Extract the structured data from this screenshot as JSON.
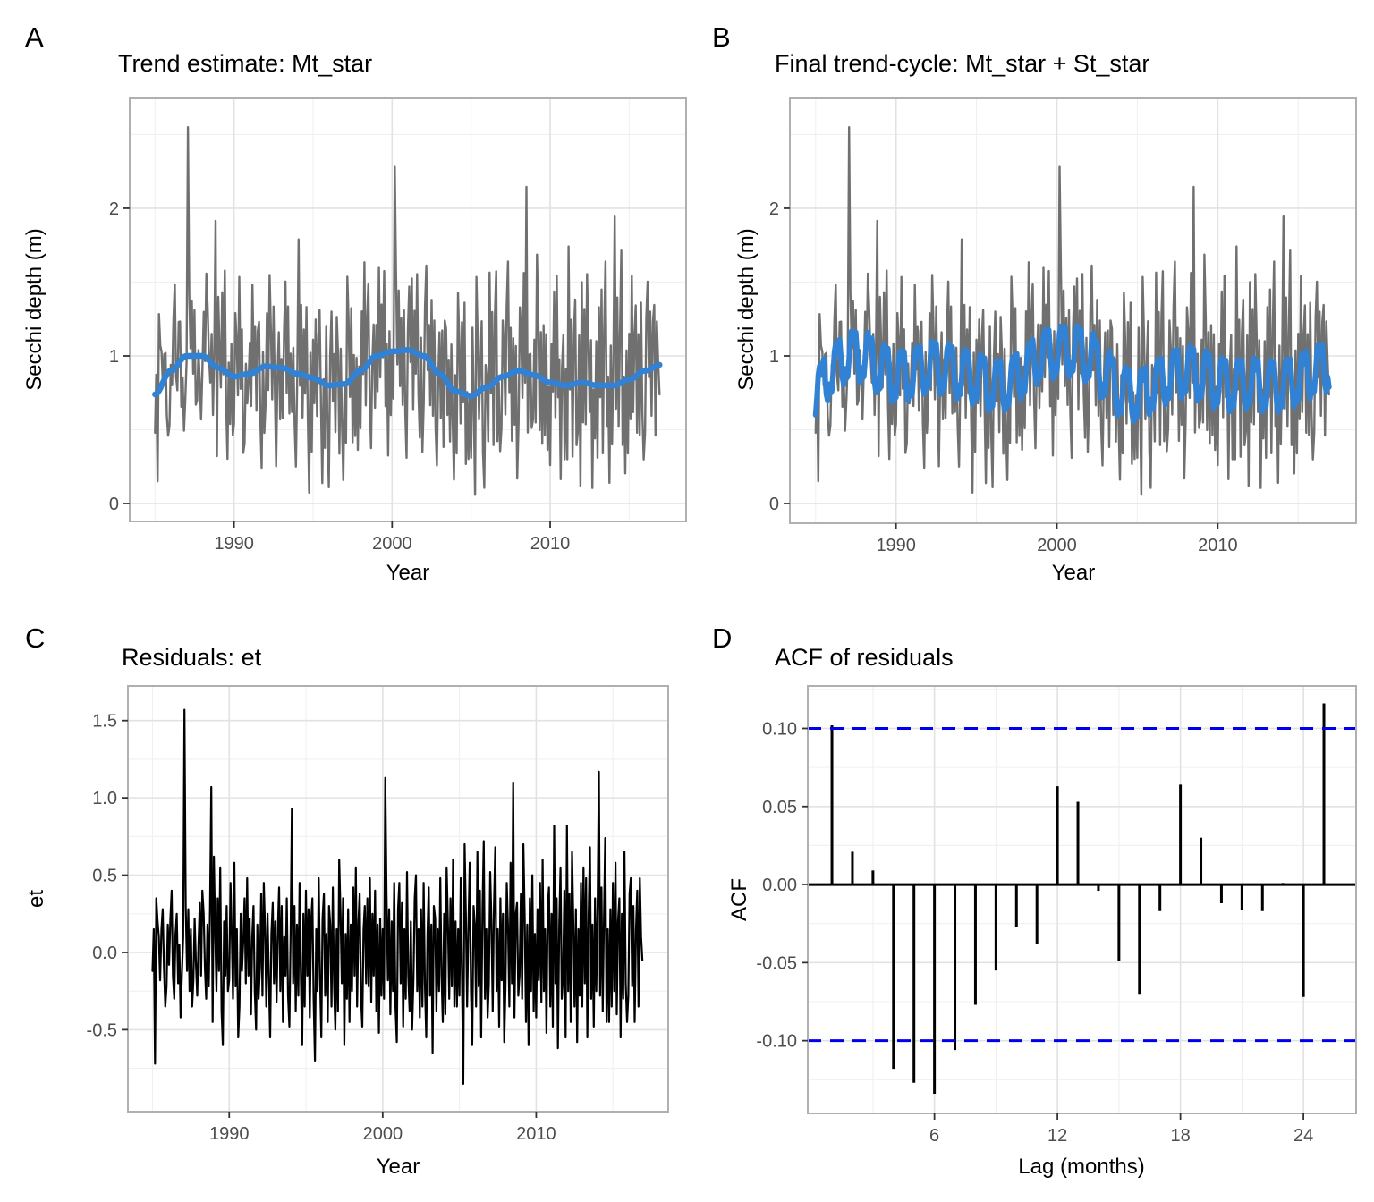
{
  "figure": {
    "background": "#ffffff",
    "tags": [
      "A",
      "B",
      "C",
      "D"
    ]
  },
  "colors": {
    "trend_blue": "#3182D4",
    "observed_gray": "#707070",
    "residual_black": "#000000",
    "ci_dashed_blue": "#0000EE",
    "grid_major": "#E2E2E2",
    "grid_minor": "#F0F0F0",
    "panel_border": "#B0B0B0",
    "tick_mark": "#333333",
    "tick_text": "#4D4D4D"
  },
  "panels": [
    {
      "tag": "A",
      "title": "Trend estimate: Mt_star",
      "xlabel": "Year",
      "ylabel": "Secchi depth (m)",
      "x_ticks": [
        1990,
        2000,
        2010
      ],
      "x_tick_labels": [
        "1990",
        "2000",
        "2010"
      ],
      "x_minor": [
        1985,
        1995,
        2005,
        2015
      ],
      "y_ticks": [
        0,
        1,
        2
      ],
      "y_tick_labels": [
        "0",
        "1",
        "2"
      ],
      "y_minor": [
        0.5,
        1.5,
        2.5
      ]
    },
    {
      "tag": "B",
      "title": "Final trend-cycle: Mt_star + St_star",
      "xlabel": "Year",
      "ylabel": "Secchi depth (m)",
      "x_ticks": [
        1990,
        2000,
        2010
      ],
      "x_tick_labels": [
        "1990",
        "2000",
        "2010"
      ],
      "x_minor": [
        1985,
        1995,
        2005,
        2015
      ],
      "y_ticks": [
        0,
        1,
        2
      ],
      "y_tick_labels": [
        "0",
        "1",
        "2"
      ],
      "y_minor": [
        0.5,
        1.5,
        2.5
      ]
    },
    {
      "tag": "C",
      "title": "Residuals: et",
      "xlabel": "Year",
      "ylabel": "et",
      "x_ticks": [
        1990,
        2000,
        2010
      ],
      "x_tick_labels": [
        "1990",
        "2000",
        "2010"
      ],
      "x_minor": [
        1985,
        1995,
        2005,
        2015
      ],
      "y_ticks": [
        -0.5,
        0.0,
        0.5,
        1.0,
        1.5
      ],
      "y_tick_labels": [
        "-0.5",
        "0.0",
        "0.5",
        "1.0",
        "1.5"
      ],
      "y_minor": [
        -0.75,
        -0.25,
        0.25,
        0.75,
        1.25
      ]
    },
    {
      "tag": "D",
      "title": "ACF of residuals",
      "xlabel": "Lag (months)",
      "ylabel": "ACF",
      "x_ticks": [
        6,
        12,
        18,
        24
      ],
      "x_tick_labels": [
        "6",
        "12",
        "18",
        "24"
      ],
      "x_minor": [
        3,
        9,
        15,
        21
      ],
      "y_ticks": [
        -0.1,
        -0.05,
        0.0,
        0.05,
        0.1
      ],
      "y_tick_labels": [
        "-0.10",
        "-0.05",
        "0.00",
        "0.05",
        "0.10"
      ],
      "y_minor": [
        -0.125,
        -0.075,
        -0.025,
        0.025,
        0.075,
        0.125
      ]
    }
  ],
  "chart_data": {
    "type": "multi-panel time-series decomposition",
    "time": {
      "start_year": 1985,
      "end_year": 2017,
      "step": "monthly",
      "n_points": 384
    },
    "panel_A": {
      "type": "line",
      "title": "Trend estimate: Mt_star",
      "xlabel": "Year",
      "ylabel": "Secchi depth (m)",
      "xlim": [
        1983.4,
        2018.6
      ],
      "ylim": [
        -0.12,
        2.75
      ],
      "series": [
        {
          "name": "observed Secchi depth",
          "color_key": "observed_gray",
          "rule": "trend + seasonal + residual (monthly)"
        },
        {
          "name": "Mt_star trend",
          "color_key": "trend_blue",
          "rule": "trend interpolated from trend_knots"
        }
      ]
    },
    "panel_B": {
      "type": "line",
      "title": "Final trend-cycle: Mt_star + St_star",
      "xlabel": "Year",
      "ylabel": "Secchi depth (m)",
      "xlim": [
        1983.4,
        2018.6
      ],
      "ylim": [
        -0.13,
        2.75
      ],
      "series": [
        {
          "name": "observed Secchi depth",
          "color_key": "observed_gray",
          "rule": "trend + seasonal + residual (monthly)"
        },
        {
          "name": "Mt_star + St_star",
          "color_key": "trend_blue",
          "rule": "trend + seasonal (monthly)"
        }
      ]
    },
    "panel_C": {
      "type": "line",
      "title": "Residuals: et",
      "xlabel": "Year",
      "ylabel": "et",
      "xlim": [
        1983.4,
        2018.6
      ],
      "ylim": [
        -1.03,
        1.72
      ],
      "series": [
        {
          "name": "et residuals",
          "color_key": "residual_black",
          "rule": "residuals (monthly)"
        }
      ]
    },
    "panel_D": {
      "type": "bar",
      "title": "ACF of residuals",
      "xlabel": "Lag (months)",
      "ylabel": "ACF",
      "xlim": [
        -0.2,
        26.6
      ],
      "ylim": [
        -0.147,
        0.127
      ],
      "ci_bounds": [
        0.1,
        -0.1
      ],
      "lags": [
        1,
        2,
        3,
        4,
        5,
        6,
        7,
        8,
        9,
        10,
        11,
        12,
        13,
        14,
        15,
        16,
        17,
        18,
        19,
        20,
        21,
        22,
        23,
        24,
        25
      ],
      "acf_values": [
        0.102,
        0.021,
        0.009,
        -0.118,
        -0.127,
        -0.134,
        -0.106,
        -0.077,
        -0.055,
        -0.027,
        -0.038,
        0.063,
        0.053,
        -0.004,
        -0.049,
        -0.07,
        -0.017,
        0.064,
        0.03,
        -0.012,
        -0.016,
        -0.017,
        0.001,
        -0.072,
        0.116
      ]
    },
    "components": {
      "trend_knot_years": [
        1985,
        1986,
        1987,
        1988,
        1989,
        1990,
        1991,
        1992,
        1993,
        1994,
        1995,
        1996,
        1997,
        1998,
        1999,
        2000,
        2001,
        2002,
        2003,
        2004,
        2005,
        2006,
        2007,
        2008,
        2009,
        2010,
        2011,
        2012,
        2013,
        2014,
        2015,
        2016,
        2017
      ],
      "trend_knots": [
        0.74,
        0.9,
        1.0,
        1.0,
        0.92,
        0.86,
        0.88,
        0.93,
        0.92,
        0.88,
        0.85,
        0.8,
        0.81,
        0.9,
        1.0,
        1.03,
        1.04,
        1.0,
        0.88,
        0.76,
        0.73,
        0.79,
        0.86,
        0.9,
        0.87,
        0.82,
        0.8,
        0.82,
        0.8,
        0.8,
        0.84,
        0.9,
        0.94
      ],
      "seasonal_monthly": [
        -0.14,
        -0.02,
        0.12,
        0.17,
        0.09,
        0.13,
        0.16,
        0.02,
        -0.12,
        -0.18,
        -0.08,
        -0.15
      ],
      "residuals_by_year": [
        [
          -0.12,
          0.15,
          -0.72,
          0.35,
          0.2,
          0.1,
          -0.18,
          0.15,
          0.28,
          -0.1,
          -0.35,
          -0.22
        ],
        [
          0.18,
          -0.08,
          0.22,
          0.4,
          -0.15,
          -0.3,
          0.12,
          0.25,
          -0.2,
          0.05,
          -0.42,
          -0.15
        ],
        [
          0.1,
          1.57,
          0.3,
          -0.12,
          0.28,
          -0.25,
          0.15,
          -0.35,
          -0.18,
          0.22,
          -0.08,
          -0.28
        ],
        [
          0.05,
          0.32,
          -0.15,
          0.4,
          0.25,
          -0.1,
          -0.3,
          0.18,
          -0.22,
          0.28,
          1.07,
          -0.45
        ],
        [
          0.62,
          0.15,
          -0.25,
          0.35,
          -0.12,
          0.55,
          -0.38,
          -0.6,
          0.2,
          -0.15,
          0.3,
          -0.25
        ],
        [
          -0.18,
          0.45,
          0.12,
          -0.3,
          0.58,
          -0.22,
          0.15,
          -0.55,
          -0.35,
          0.25,
          -0.12,
          0.08
        ],
        [
          0.35,
          -0.2,
          0.48,
          -0.15,
          0.22,
          -0.4,
          0.1,
          0.3,
          -0.25,
          -0.5,
          0.18,
          -0.3
        ],
        [
          -0.1,
          0.38,
          -0.28,
          0.45,
          0.15,
          -0.35,
          0.25,
          -0.18,
          -0.55,
          0.12,
          0.32,
          -0.2
        ],
        [
          0.2,
          -0.32,
          0.15,
          0.42,
          -0.25,
          0.3,
          -0.45,
          0.1,
          -0.15,
          0.35,
          -0.28,
          -0.48
        ],
        [
          0.12,
          0.93,
          -0.2,
          0.3,
          -0.38,
          0.18,
          -0.28,
          0.45,
          -0.15,
          -0.6,
          0.25,
          -0.35
        ],
        [
          0.4,
          -0.15,
          0.28,
          -0.42,
          0.2,
          0.35,
          -0.3,
          -0.7,
          0.15,
          -0.25,
          0.48,
          -0.18
        ],
        [
          -0.55,
          0.22,
          0.38,
          -0.28,
          0.12,
          -0.45,
          0.3,
          0.18,
          -0.35,
          0.42,
          -0.22,
          -0.5
        ],
        [
          0.15,
          -0.38,
          0.6,
          0.25,
          -0.2,
          0.35,
          -0.6,
          0.12,
          -0.3,
          0.28,
          -0.45,
          0.18
        ],
        [
          -0.25,
          0.42,
          -0.15,
          0.55,
          -0.35,
          0.2,
          0.38,
          -0.28,
          -0.48,
          0.15,
          0.3,
          -0.2
        ],
        [
          0.35,
          -0.22,
          0.48,
          -0.32,
          0.25,
          -0.15,
          0.4,
          -0.38,
          0.18,
          -0.52,
          0.22,
          -0.28
        ],
        [
          0.15,
          -0.3,
          1.13,
          0.38,
          -0.18,
          0.28,
          -0.4,
          0.2,
          -0.25,
          0.45,
          -0.35,
          -0.58
        ],
        [
          0.28,
          0.45,
          -0.2,
          0.32,
          -0.48,
          0.15,
          -0.3,
          0.52,
          -0.15,
          -0.38,
          0.2,
          -0.5
        ],
        [
          -0.18,
          0.35,
          0.5,
          -0.25,
          0.15,
          -0.42,
          0.28,
          -0.35,
          0.45,
          -0.2,
          -0.55,
          0.12
        ],
        [
          0.42,
          -0.28,
          0.18,
          -0.65,
          0.3,
          0.22,
          -0.38,
          0.15,
          -0.25,
          0.48,
          -0.15,
          -0.45
        ],
        [
          0.25,
          -0.4,
          0.55,
          0.18,
          -0.3,
          0.35,
          -0.22,
          0.6,
          -0.35,
          0.2,
          -0.35,
          0.15
        ],
        [
          -0.28,
          0.48,
          -0.18,
          -0.85,
          0.7,
          0.25,
          -0.35,
          0.15,
          0.58,
          -0.25,
          -0.6,
          0.3
        ],
        [
          0.18,
          -0.35,
          0.65,
          -0.22,
          0.4,
          -0.55,
          0.28,
          0.72,
          -0.3,
          0.15,
          -0.42,
          -0.2
        ],
        [
          0.52,
          0.2,
          -0.38,
          0.3,
          0.68,
          -0.25,
          0.15,
          -0.48,
          0.35,
          -0.18,
          0.25,
          -0.58
        ],
        [
          -0.22,
          0.45,
          0.15,
          -0.35,
          0.58,
          -0.2,
          1.1,
          -0.42,
          0.25,
          0.32,
          -0.28,
          -0.15
        ],
        [
          0.38,
          -0.3,
          0.7,
          0.22,
          -0.45,
          0.18,
          -0.6,
          0.35,
          -0.25,
          0.5,
          -0.38,
          0.12
        ],
        [
          -0.42,
          0.28,
          -0.18,
          0.45,
          -0.32,
          0.6,
          -0.25,
          0.15,
          -0.52,
          0.3,
          0.42,
          -0.35
        ],
        [
          0.25,
          -0.48,
          0.82,
          -0.2,
          0.35,
          -0.62,
          0.18,
          0.55,
          -0.3,
          -0.15,
          0.4,
          -0.55
        ],
        [
          0.82,
          -0.25,
          0.38,
          -0.45,
          0.65,
          0.2,
          -0.35,
          0.28,
          -0.58,
          0.15,
          -0.28,
          0.45
        ],
        [
          -0.35,
          0.55,
          -0.2,
          0.48,
          -0.55,
          0.25,
          0.68,
          -0.3,
          0.18,
          -0.48,
          0.35,
          -0.25
        ],
        [
          0.3,
          1.17,
          -0.28,
          0.42,
          -0.38,
          0.22,
          0.74,
          -0.45,
          0.15,
          -0.45,
          0.28,
          -0.35
        ],
        [
          0.45,
          -0.25,
          0.58,
          -0.4,
          0.2,
          0.35,
          -0.55,
          0.25,
          -0.3,
          0.65,
          -0.2,
          -0.45
        ],
        [
          -0.28,
          0.38,
          0.48,
          -0.22,
          0.3,
          -0.45,
          0.15,
          0.4,
          -0.35,
          0.48,
          0.1,
          -0.05
        ]
      ]
    }
  }
}
